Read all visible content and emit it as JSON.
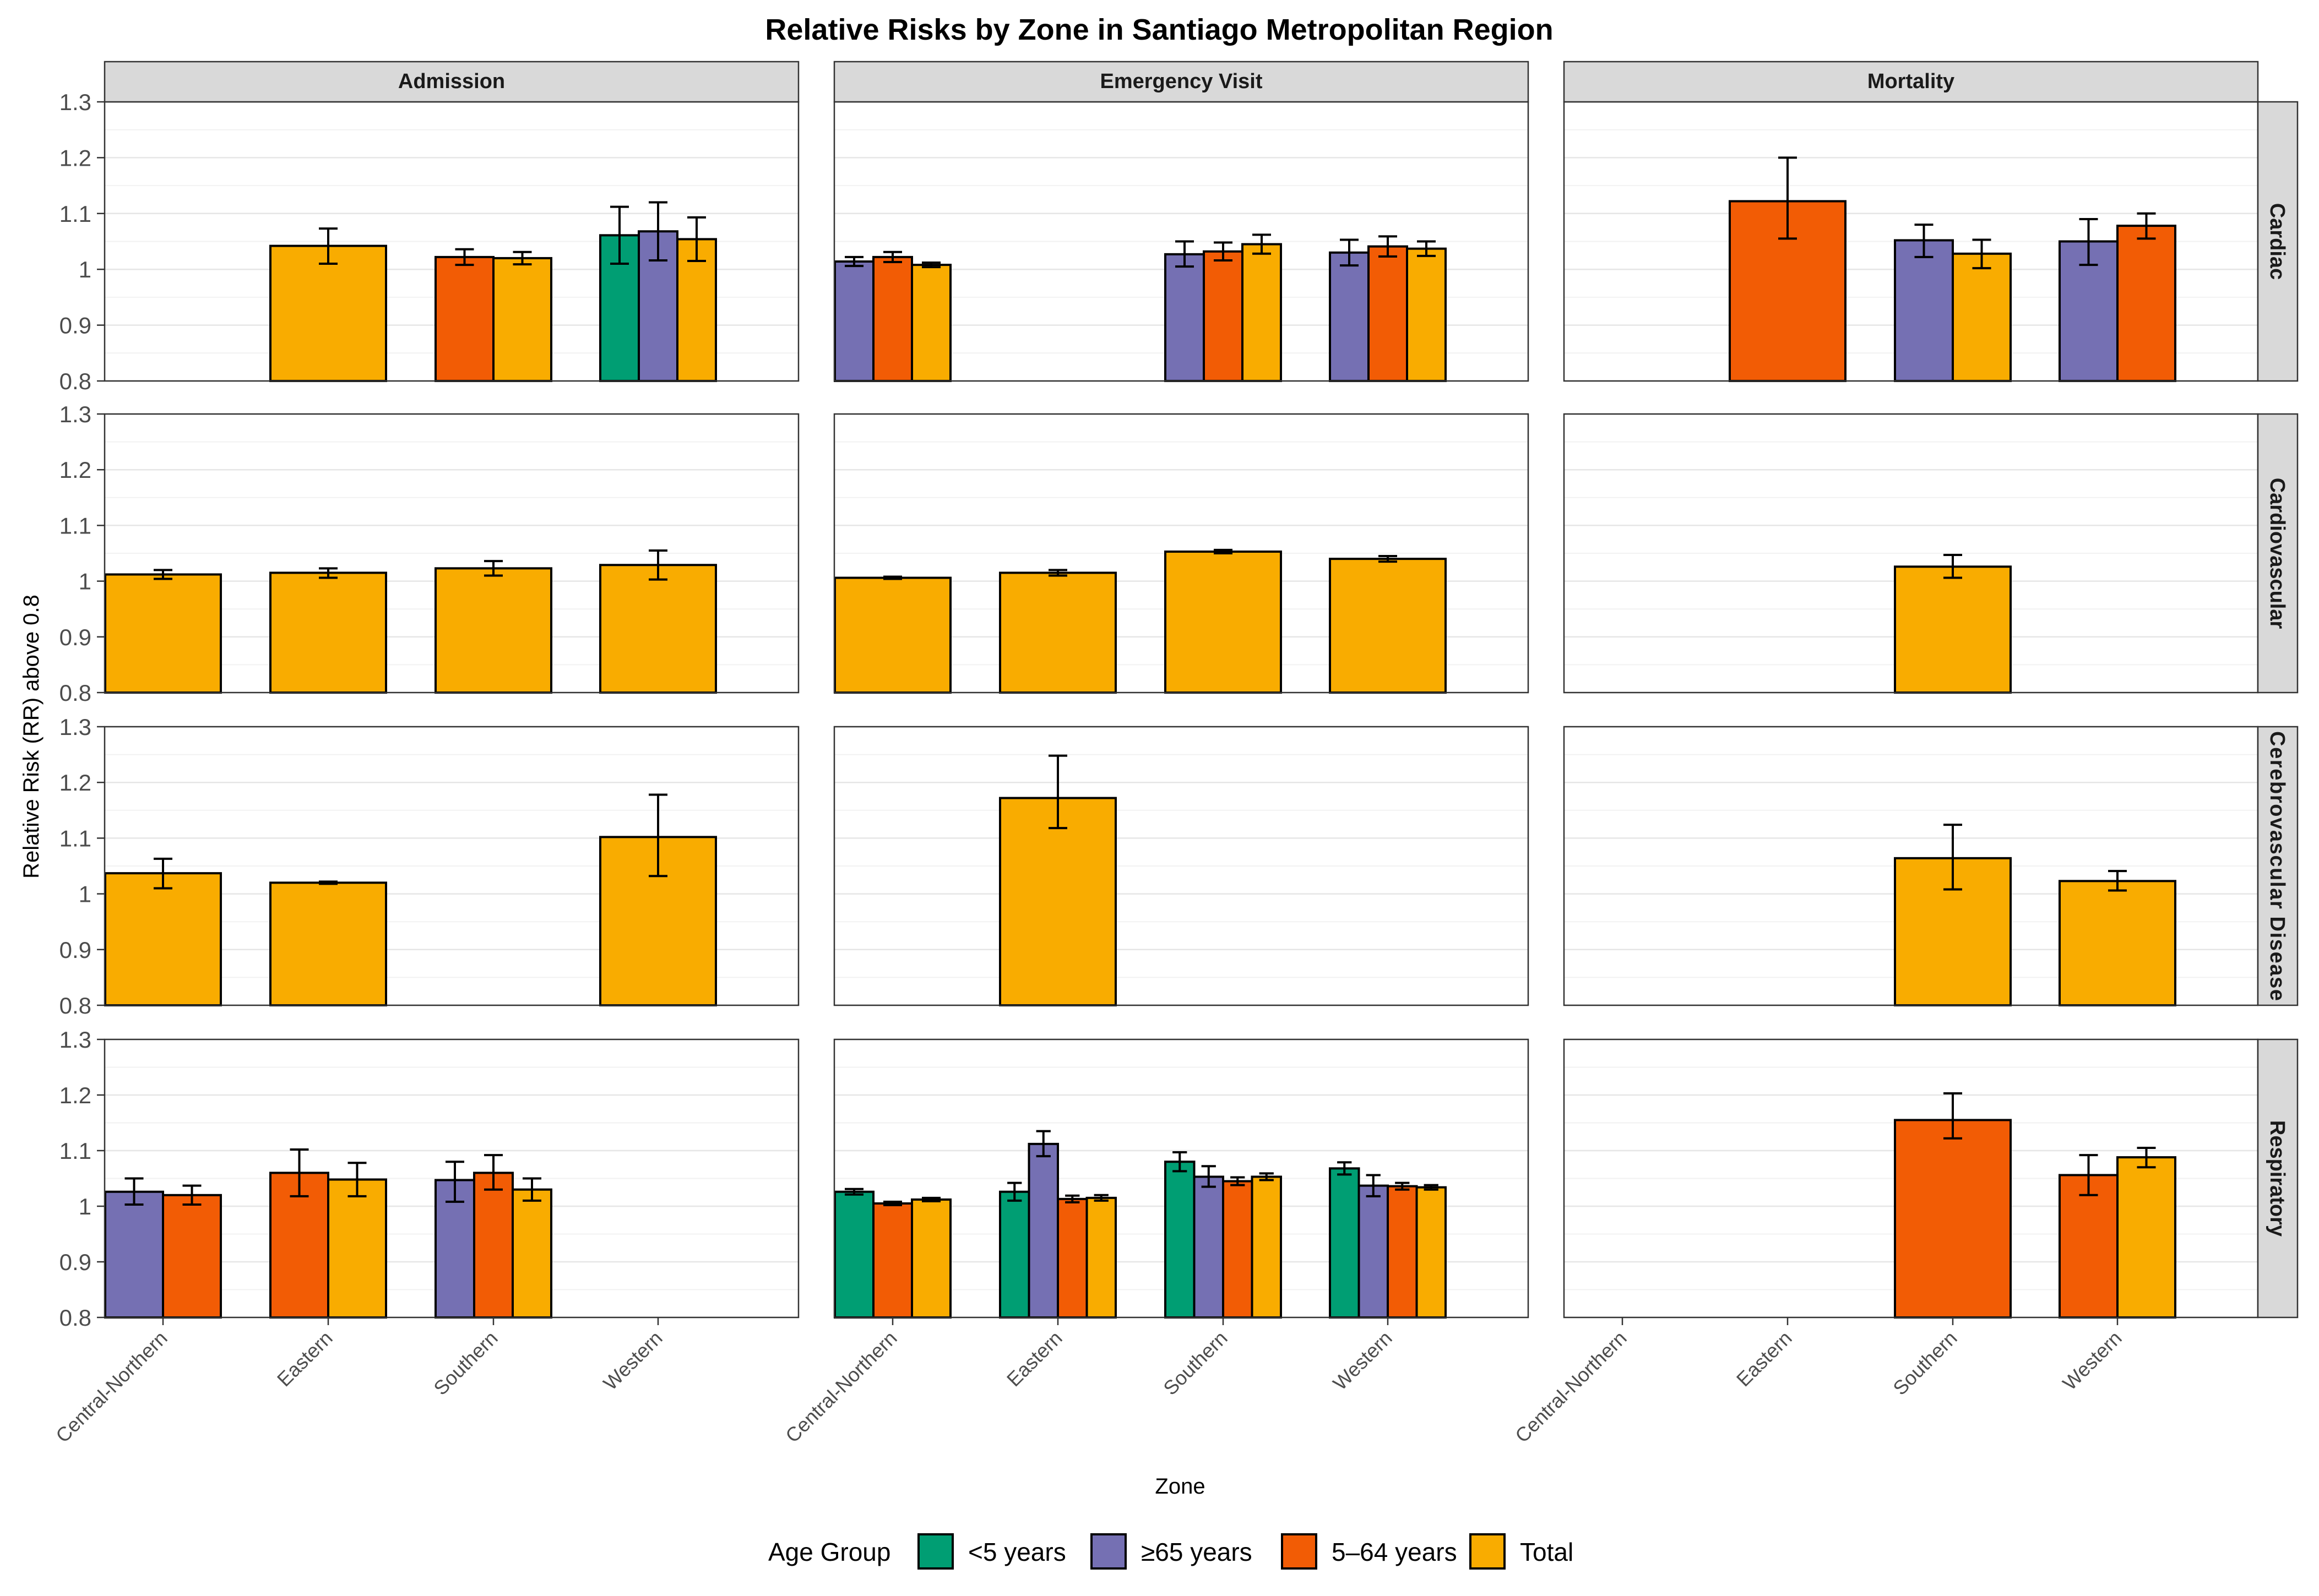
{
  "chart_data": {
    "type": "bar",
    "title": "Relative Risks by Zone in Santiago Metropolitan Region",
    "xlabel": "Zone",
    "ylabel": "Relative Risk (RR) above 0.8",
    "ylim": [
      0.8,
      1.3
    ],
    "y_ticks": [
      "0.8",
      "0.9",
      "1",
      "1.1",
      "1.2",
      "1.3"
    ],
    "grid": true,
    "legend_position": "bottom",
    "legend_title": "Age Group",
    "categories": [
      "Central-Northern",
      "Eastern",
      "Southern",
      "Western"
    ],
    "column_facets": [
      "Admission",
      "Emergency Visit",
      "Mortality"
    ],
    "row_facets": [
      "Cardiac",
      "Cardiovascular",
      "Cerebrovascular Disease",
      "Respiratory"
    ],
    "series": [
      {
        "name": "<5 years",
        "color": "#009E73"
      },
      {
        "name": "≥65 years",
        "color": "#7570B3"
      },
      {
        "name": "5–64 years",
        "color": "#F25C05"
      },
      {
        "name": "Total",
        "color": "#F9AC00"
      }
    ],
    "panels": [
      {
        "row": "Cardiac",
        "col": "Admission",
        "bars": [
          {
            "zone": "Eastern",
            "group": "Total",
            "value": 1.042,
            "lo": 1.01,
            "hi": 1.073
          },
          {
            "zone": "Southern",
            "group": "5–64 years",
            "value": 1.022,
            "lo": 1.008,
            "hi": 1.036
          },
          {
            "zone": "Southern",
            "group": "Total",
            "value": 1.02,
            "lo": 1.009,
            "hi": 1.031
          },
          {
            "zone": "Western",
            "group": "<5 years",
            "value": 1.061,
            "lo": 1.01,
            "hi": 1.112
          },
          {
            "zone": "Western",
            "group": "≥65 years",
            "value": 1.068,
            "lo": 1.016,
            "hi": 1.12
          },
          {
            "zone": "Western",
            "group": "Total",
            "value": 1.054,
            "lo": 1.015,
            "hi": 1.093
          }
        ]
      },
      {
        "row": "Cardiac",
        "col": "Emergency Visit",
        "bars": [
          {
            "zone": "Central-Northern",
            "group": "≥65 years",
            "value": 1.014,
            "lo": 1.006,
            "hi": 1.022
          },
          {
            "zone": "Central-Northern",
            "group": "5–64 years",
            "value": 1.022,
            "lo": 1.013,
            "hi": 1.031
          },
          {
            "zone": "Central-Northern",
            "group": "Total",
            "value": 1.008,
            "lo": 1.004,
            "hi": 1.012
          },
          {
            "zone": "Southern",
            "group": "≥65 years",
            "value": 1.027,
            "lo": 1.005,
            "hi": 1.05
          },
          {
            "zone": "Southern",
            "group": "5–64 years",
            "value": 1.032,
            "lo": 1.016,
            "hi": 1.048
          },
          {
            "zone": "Southern",
            "group": "Total",
            "value": 1.045,
            "lo": 1.028,
            "hi": 1.062
          },
          {
            "zone": "Western",
            "group": "≥65 years",
            "value": 1.03,
            "lo": 1.007,
            "hi": 1.053
          },
          {
            "zone": "Western",
            "group": "5–64 years",
            "value": 1.041,
            "lo": 1.023,
            "hi": 1.059
          },
          {
            "zone": "Western",
            "group": "Total",
            "value": 1.037,
            "lo": 1.024,
            "hi": 1.05
          }
        ]
      },
      {
        "row": "Cardiac",
        "col": "Mortality",
        "bars": [
          {
            "zone": "Eastern",
            "group": "5–64 years",
            "value": 1.122,
            "lo": 1.055,
            "hi": 1.2
          },
          {
            "zone": "Southern",
            "group": "≥65 years",
            "value": 1.052,
            "lo": 1.022,
            "hi": 1.08
          },
          {
            "zone": "Southern",
            "group": "Total",
            "value": 1.028,
            "lo": 1.002,
            "hi": 1.053
          },
          {
            "zone": "Western",
            "group": "≥65 years",
            "value": 1.05,
            "lo": 1.008,
            "hi": 1.09
          },
          {
            "zone": "Western",
            "group": "5–64 years",
            "value": 1.078,
            "lo": 1.055,
            "hi": 1.1
          }
        ]
      },
      {
        "row": "Cardiovascular",
        "col": "Admission",
        "bars": [
          {
            "zone": "Central-Northern",
            "group": "Total",
            "value": 1.012,
            "lo": 1.004,
            "hi": 1.02
          },
          {
            "zone": "Eastern",
            "group": "Total",
            "value": 1.015,
            "lo": 1.006,
            "hi": 1.023
          },
          {
            "zone": "Southern",
            "group": "Total",
            "value": 1.023,
            "lo": 1.01,
            "hi": 1.036
          },
          {
            "zone": "Western",
            "group": "Total",
            "value": 1.029,
            "lo": 1.003,
            "hi": 1.055
          }
        ]
      },
      {
        "row": "Cardiovascular",
        "col": "Emergency Visit",
        "bars": [
          {
            "zone": "Central-Northern",
            "group": "Total",
            "value": 1.006,
            "lo": 1.004,
            "hi": 1.008
          },
          {
            "zone": "Eastern",
            "group": "Total",
            "value": 1.015,
            "lo": 1.01,
            "hi": 1.02
          },
          {
            "zone": "Southern",
            "group": "Total",
            "value": 1.053,
            "lo": 1.05,
            "hi": 1.056
          },
          {
            "zone": "Western",
            "group": "Total",
            "value": 1.04,
            "lo": 1.035,
            "hi": 1.045
          }
        ]
      },
      {
        "row": "Cardiovascular",
        "col": "Mortality",
        "bars": [
          {
            "zone": "Southern",
            "group": "Total",
            "value": 1.026,
            "lo": 1.006,
            "hi": 1.047
          }
        ]
      },
      {
        "row": "Cerebrovascular Disease",
        "col": "Admission",
        "bars": [
          {
            "zone": "Central-Northern",
            "group": "Total",
            "value": 1.037,
            "lo": 1.01,
            "hi": 1.063
          },
          {
            "zone": "Eastern",
            "group": "Total",
            "value": 1.02,
            "lo": 1.018,
            "hi": 1.022
          },
          {
            "zone": "Western",
            "group": "Total",
            "value": 1.102,
            "lo": 1.032,
            "hi": 1.178
          }
        ]
      },
      {
        "row": "Cerebrovascular Disease",
        "col": "Emergency Visit",
        "bars": [
          {
            "zone": "Eastern",
            "group": "Total",
            "value": 1.172,
            "lo": 1.118,
            "hi": 1.248
          }
        ]
      },
      {
        "row": "Cerebrovascular Disease",
        "col": "Mortality",
        "bars": [
          {
            "zone": "Southern",
            "group": "Total",
            "value": 1.064,
            "lo": 1.008,
            "hi": 1.124
          },
          {
            "zone": "Western",
            "group": "Total",
            "value": 1.023,
            "lo": 1.006,
            "hi": 1.041
          }
        ]
      },
      {
        "row": "Respiratory",
        "col": "Admission",
        "bars": [
          {
            "zone": "Central-Northern",
            "group": "≥65 years",
            "value": 1.026,
            "lo": 1.003,
            "hi": 1.05
          },
          {
            "zone": "Central-Northern",
            "group": "5–64 years",
            "value": 1.02,
            "lo": 1.003,
            "hi": 1.037
          },
          {
            "zone": "Eastern",
            "group": "5–64 years",
            "value": 1.06,
            "lo": 1.018,
            "hi": 1.102
          },
          {
            "zone": "Eastern",
            "group": "Total",
            "value": 1.048,
            "lo": 1.018,
            "hi": 1.078
          },
          {
            "zone": "Southern",
            "group": "≥65 years",
            "value": 1.047,
            "lo": 1.008,
            "hi": 1.08
          },
          {
            "zone": "Southern",
            "group": "5–64 years",
            "value": 1.06,
            "lo": 1.03,
            "hi": 1.092
          },
          {
            "zone": "Southern",
            "group": "Total",
            "value": 1.03,
            "lo": 1.01,
            "hi": 1.05
          }
        ]
      },
      {
        "row": "Respiratory",
        "col": "Emergency Visit",
        "bars": [
          {
            "zone": "Central-Northern",
            "group": "<5 years",
            "value": 1.026,
            "lo": 1.021,
            "hi": 1.031
          },
          {
            "zone": "Central-Northern",
            "group": "5–64 years",
            "value": 1.005,
            "lo": 1.002,
            "hi": 1.008
          },
          {
            "zone": "Central-Northern",
            "group": "Total",
            "value": 1.012,
            "lo": 1.009,
            "hi": 1.015
          },
          {
            "zone": "Eastern",
            "group": "<5 years",
            "value": 1.026,
            "lo": 1.01,
            "hi": 1.042
          },
          {
            "zone": "Eastern",
            "group": "≥65 years",
            "value": 1.112,
            "lo": 1.09,
            "hi": 1.135
          },
          {
            "zone": "Eastern",
            "group": "5–64 years",
            "value": 1.013,
            "lo": 1.007,
            "hi": 1.019
          },
          {
            "zone": "Eastern",
            "group": "Total",
            "value": 1.015,
            "lo": 1.01,
            "hi": 1.02
          },
          {
            "zone": "Southern",
            "group": "<5 years",
            "value": 1.08,
            "lo": 1.063,
            "hi": 1.097
          },
          {
            "zone": "Southern",
            "group": "≥65 years",
            "value": 1.053,
            "lo": 1.035,
            "hi": 1.072
          },
          {
            "zone": "Southern",
            "group": "5–64 years",
            "value": 1.045,
            "lo": 1.038,
            "hi": 1.052
          },
          {
            "zone": "Southern",
            "group": "Total",
            "value": 1.053,
            "lo": 1.047,
            "hi": 1.059
          },
          {
            "zone": "Western",
            "group": "<5 years",
            "value": 1.068,
            "lo": 1.057,
            "hi": 1.079
          },
          {
            "zone": "Western",
            "group": "≥65 years",
            "value": 1.037,
            "lo": 1.018,
            "hi": 1.056
          },
          {
            "zone": "Western",
            "group": "5–64 years",
            "value": 1.036,
            "lo": 1.03,
            "hi": 1.042
          },
          {
            "zone": "Western",
            "group": "Total",
            "value": 1.034,
            "lo": 1.03,
            "hi": 1.038
          }
        ]
      },
      {
        "row": "Respiratory",
        "col": "Mortality",
        "bars": [
          {
            "zone": "Southern",
            "group": "5–64 years",
            "value": 1.155,
            "lo": 1.122,
            "hi": 1.203
          },
          {
            "zone": "Western",
            "group": "5–64 years",
            "value": 1.056,
            "lo": 1.02,
            "hi": 1.092
          },
          {
            "zone": "Western",
            "group": "Total",
            "value": 1.088,
            "lo": 1.07,
            "hi": 1.105
          }
        ]
      }
    ]
  }
}
